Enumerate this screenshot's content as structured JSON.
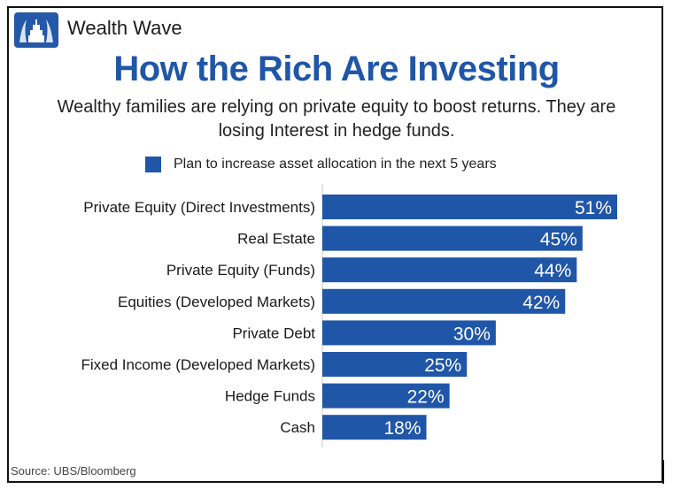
{
  "header": {
    "brand": "Wealth Wave",
    "logo_icon": "wealth-wave-logo-icon"
  },
  "title": "How the Rich Are Investing",
  "subtitle": "Wealthy families are relying on private equity to boost returns. They are losing Interest in hedge funds.",
  "colors": {
    "bar": "#1f56a8",
    "title": "#1f56a8",
    "label": "#1a1a1a",
    "value_text": "#ffffff"
  },
  "chart_data": {
    "type": "bar",
    "orientation": "horizontal",
    "categories": [
      "Private Equity (Direct Investments)",
      "Real Estate",
      "Private Equity (Funds)",
      "Equities (Developed Markets)",
      "Private Debt",
      "Fixed Income (Developed Markets)",
      "Hedge Funds",
      "Cash"
    ],
    "series": [
      {
        "name": "Plan to increase asset allocation in the next 5 years",
        "values": [
          51,
          45,
          44,
          42,
          30,
          25,
          22,
          18
        ]
      }
    ],
    "value_labels": [
      "51%",
      "45%",
      "44%",
      "42%",
      "30%",
      "25%",
      "22%",
      "18%"
    ],
    "unit": "%",
    "xlim": [
      0,
      51
    ],
    "grid": false,
    "legend_position": "top"
  },
  "source": "Source: UBS/Bloomberg"
}
